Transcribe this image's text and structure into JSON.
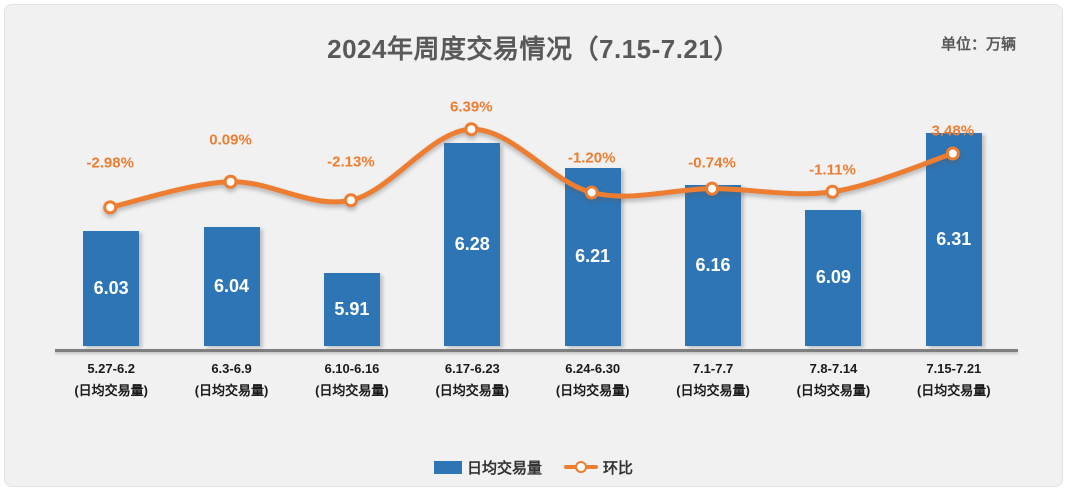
{
  "title": "2024年周度交易情况（7.15-7.21）",
  "unit_label": "单位：万辆",
  "legend": {
    "bar_label": "日均交易量",
    "line_label": "环比"
  },
  "colors": {
    "bar": "#2E75B5",
    "line": "#ED7D31",
    "pct_label_text": "#ED7D31",
    "bar_value_text": "#FFFFFF",
    "axis_line": "#7F7F7F",
    "title_text": "#595959",
    "category_text": "#1A1A1A",
    "chart_bg": "#F1F1F1",
    "page_bg": "#FFFFFF"
  },
  "chart_data": {
    "type": "bar",
    "subtype": "combo-bar-line",
    "title": "2024年周度交易情况（7.15-7.21）",
    "unit": "万辆",
    "categories": [
      "5.27-6.2",
      "6.3-6.9",
      "6.10-6.16",
      "6.17-6.23",
      "6.24-6.30",
      "7.1-7.7",
      "7.8-7.14",
      "7.15-7.21"
    ],
    "category_sublabel": "(日均交易量)",
    "series": [
      {
        "name": "日均交易量",
        "type": "bar",
        "axis": "primary",
        "values": [
          6.03,
          6.04,
          5.91,
          6.28,
          6.21,
          6.16,
          6.09,
          6.31
        ],
        "value_labels": [
          "6.03",
          "6.04",
          "5.91",
          "6.28",
          "6.21",
          "6.16",
          "6.09",
          "6.31"
        ],
        "ylim": [
          5.7,
          6.4
        ]
      },
      {
        "name": "环比",
        "type": "line",
        "axis": "secondary",
        "values": [
          -2.98,
          0.09,
          -2.13,
          6.39,
          -1.2,
          -0.74,
          -1.11,
          3.48
        ],
        "value_labels": [
          "-2.98%",
          "0.09%",
          "-2.13%",
          "6.39%",
          "-1.20%",
          "-0.74%",
          "-1.11%",
          "3.48%"
        ],
        "ylim": [
          -19.5,
          9.9
        ]
      }
    ],
    "legend_position": "bottom",
    "grid": false
  }
}
